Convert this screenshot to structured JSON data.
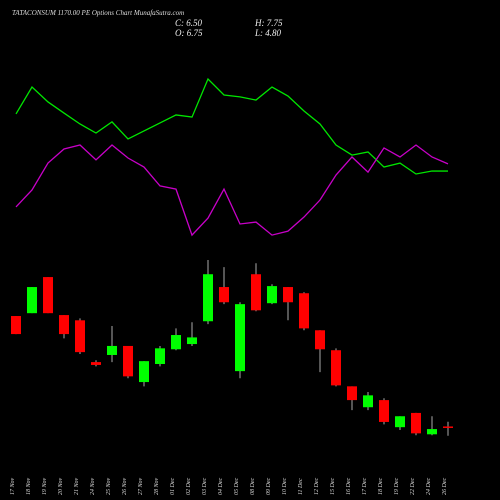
{
  "chart_data": [
    {
      "type": "line",
      "ylim": [
        0,
        100
      ],
      "series": [
        {
          "color": "#00e600",
          "values": [
            64.8,
            77.6,
            70.5,
            65.2,
            60.0,
            55.7,
            61.0,
            52.9,
            56.7,
            60.5,
            64.3,
            63.3,
            81.4,
            73.8,
            72.9,
            71.4,
            77.6,
            73.3,
            66.2,
            60.0,
            50.0,
            45.2,
            46.7,
            39.5,
            41.4,
            36.2,
            37.6,
            37.6
          ]
        },
        {
          "color": "#c800c8",
          "values": [
            20.5,
            28.6,
            41.4,
            48.1,
            50.0,
            42.9,
            50.0,
            43.8,
            39.5,
            30.5,
            29.0,
            7.1,
            15.2,
            29.0,
            12.4,
            13.3,
            7.1,
            9.0,
            15.7,
            23.8,
            35.7,
            44.3,
            37.1,
            48.6,
            44.3,
            50.0,
            44.3,
            41.0
          ]
        }
      ]
    },
    {
      "type": "candlestick",
      "title": "TATACONSUM 1170.00  PE Options  Chart MunafaSutra.com",
      "annotations": [
        "C: 6.50",
        "H: 7.75",
        "O: 6.75",
        "L: 4.80"
      ],
      "ylim": [
        3.9,
        43.9
      ],
      "up_color": "#00ff00",
      "down_color": "#ff0000",
      "categories": [
        "17 Nov",
        "18 Nov",
        "19 Nov",
        "20 Nov",
        "21 Nov",
        "24 Nov",
        "25 Nov",
        "26 Nov",
        "27 Nov",
        "28 Nov",
        "01 Dec",
        "02 Dec",
        "03 Dec",
        "04 Dec",
        "05 Dec",
        "08 Dec",
        "09 Dec",
        "10 Dec",
        "11 Dec",
        "12 Dec",
        "15 Dec",
        "16 Dec",
        "17 Dec",
        "18 Dec",
        "19 Dec",
        "22 Dec",
        "24 Dec",
        "26 Dec"
      ],
      "open": [
        30.0,
        30.6,
        38.2,
        30.2,
        29.1,
        20.3,
        21.8,
        23.7,
        16.1,
        19.9,
        23.0,
        24.1,
        28.9,
        36.1,
        18.4,
        38.8,
        32.7,
        36.1,
        34.8,
        27.0,
        22.8,
        15.2,
        10.8,
        12.3,
        6.6,
        9.6,
        5.1,
        6.75
      ],
      "high": [
        30.0,
        36.1,
        38.2,
        30.2,
        29.5,
        20.7,
        27.9,
        23.7,
        20.5,
        23.7,
        27.4,
        28.7,
        41.8,
        40.3,
        32.9,
        41.1,
        36.7,
        36.1,
        35.0,
        27.0,
        23.2,
        15.2,
        14.0,
        12.7,
        8.9,
        9.6,
        8.9,
        7.75
      ],
      "low": [
        26.2,
        30.6,
        30.6,
        25.3,
        22.0,
        19.4,
        20.3,
        16.9,
        15.2,
        19.4,
        22.8,
        23.7,
        28.3,
        32.5,
        16.9,
        31.0,
        32.5,
        29.1,
        27.0,
        18.2,
        15.2,
        10.2,
        10.2,
        7.2,
        6.0,
        4.9,
        4.9,
        4.8
      ],
      "close": [
        26.2,
        36.1,
        30.6,
        26.2,
        22.4,
        19.7,
        23.7,
        17.3,
        20.5,
        23.2,
        26.0,
        25.5,
        38.8,
        32.9,
        32.5,
        31.2,
        36.3,
        32.9,
        27.4,
        23.0,
        15.4,
        12.3,
        13.3,
        7.7,
        8.9,
        5.3,
        6.2,
        6.5
      ]
    }
  ]
}
